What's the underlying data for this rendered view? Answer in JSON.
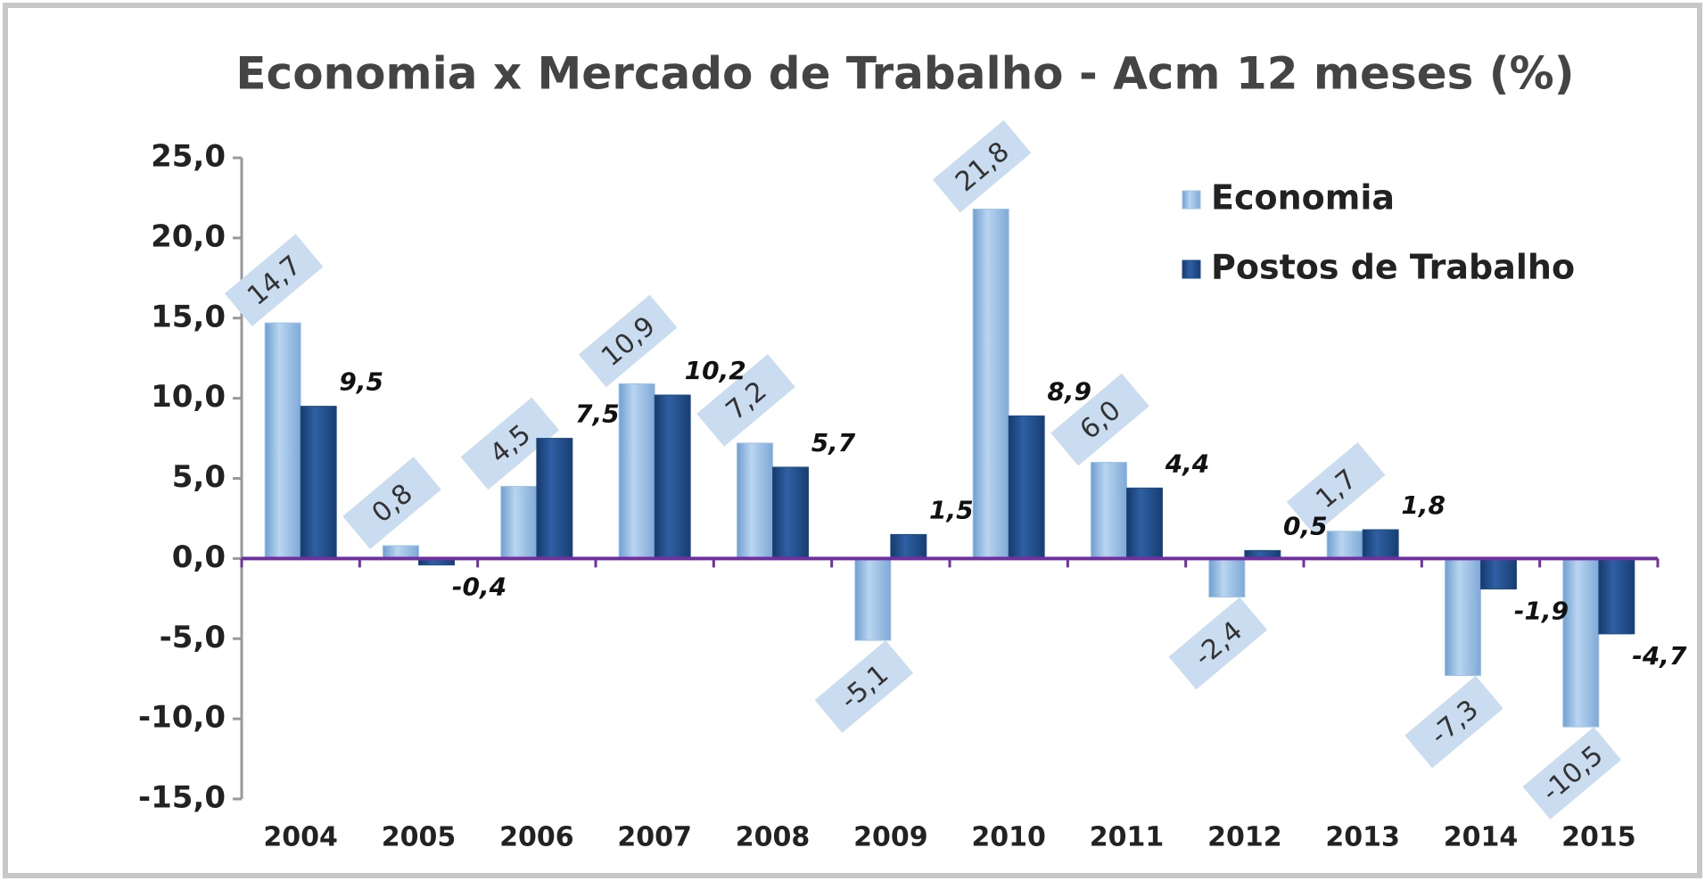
{
  "chart_data": {
    "type": "bar",
    "title": "Economia x Mercado de Trabalho - Acm 12 meses (%)",
    "categories": [
      "2004",
      "2005",
      "2006",
      "2007",
      "2008",
      "2009",
      "2010",
      "2011",
      "2012",
      "2013",
      "2014",
      "2015"
    ],
    "series": [
      {
        "name": "Economia",
        "color": "#9dc3e6",
        "values": [
          14.7,
          0.8,
          4.5,
          10.9,
          7.2,
          -5.1,
          21.8,
          6.0,
          -2.4,
          1.7,
          -7.3,
          -10.5
        ],
        "value_labels": [
          "14,7",
          "0,8",
          "4,5",
          "10,9",
          "7,2",
          "-5,1",
          "21,8",
          "6,0",
          "-2,4",
          "1,7",
          "-7,3",
          "-10,5"
        ]
      },
      {
        "name": "Postos de Trabalho",
        "color": "#1f4e8c",
        "values": [
          9.5,
          -0.4,
          7.5,
          10.2,
          5.7,
          1.5,
          8.9,
          4.4,
          0.5,
          1.8,
          -1.9,
          -4.7
        ],
        "value_labels": [
          "9,5",
          "-0,4",
          "7,5",
          "10,2",
          "5,7",
          "1,5",
          "8,9",
          "4,4",
          "0,5",
          "1,8",
          "-1,9",
          "-4,7"
        ]
      }
    ],
    "ylim": [
      -15,
      25
    ],
    "yticks": [
      {
        "value": -15,
        "label": "-15,0"
      },
      {
        "value": -10,
        "label": "-10,0"
      },
      {
        "value": -5,
        "label": "-5,0"
      },
      {
        "value": 0,
        "label": "0,0"
      },
      {
        "value": 5,
        "label": "5,0"
      },
      {
        "value": 10,
        "label": "10,0"
      },
      {
        "value": 15,
        "label": "15,0"
      },
      {
        "value": 20,
        "label": "20,0"
      },
      {
        "value": 25,
        "label": "25,0"
      }
    ],
    "legend": "top-right"
  }
}
